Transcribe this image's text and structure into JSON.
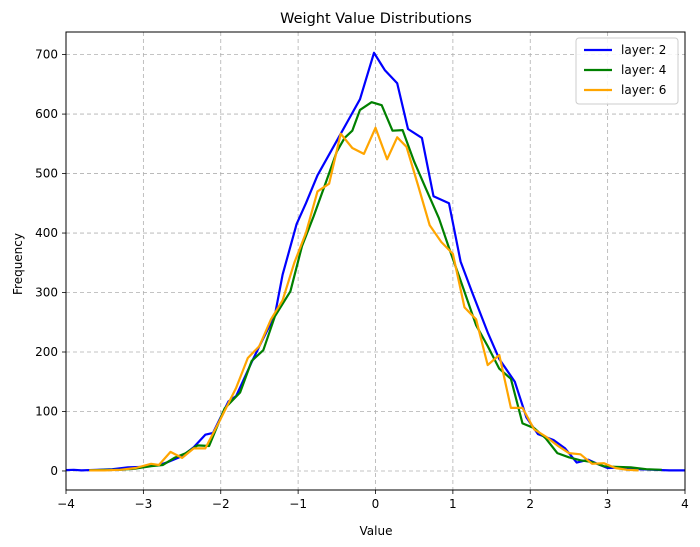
{
  "chart_data": {
    "type": "line",
    "title": "Weight Value Distributions",
    "xlabel": "Value",
    "ylabel": "Frequency",
    "xlim": [
      -4,
      4
    ],
    "ylim": [
      -32,
      738
    ],
    "xticks": [
      -4,
      -3,
      -2,
      -1,
      0,
      1,
      2,
      3,
      4
    ],
    "xtick_labels": [
      "−4",
      "−3",
      "−2",
      "−1",
      "0",
      "1",
      "2",
      "3",
      "4"
    ],
    "yticks": [
      0,
      100,
      200,
      300,
      400,
      500,
      600,
      700
    ],
    "ytick_labels": [
      "0",
      "100",
      "200",
      "300",
      "400",
      "500",
      "600",
      "700"
    ],
    "grid": true,
    "legend_position": "top-right",
    "series": [
      {
        "name": "layer: 2",
        "color": "#0000ff",
        "points": [
          [
            -4.1,
            1
          ],
          [
            -3.9,
            2
          ],
          [
            -3.8,
            1
          ],
          [
            -3.6,
            2
          ],
          [
            -3.4,
            3
          ],
          [
            -3.2,
            6
          ],
          [
            -3.0,
            7
          ],
          [
            -2.8,
            10
          ],
          [
            -2.7,
            14
          ],
          [
            -2.5,
            25
          ],
          [
            -2.35,
            40
          ],
          [
            -2.2,
            61
          ],
          [
            -2.1,
            64
          ],
          [
            -1.9,
            117
          ],
          [
            -1.8,
            126
          ],
          [
            -1.6,
            183
          ],
          [
            -1.5,
            210
          ],
          [
            -1.3,
            262
          ],
          [
            -1.2,
            330
          ],
          [
            -1.02,
            415
          ],
          [
            -0.9,
            450
          ],
          [
            -0.75,
            497
          ],
          [
            -0.5,
            555
          ],
          [
            -0.35,
            590
          ],
          [
            -0.2,
            625
          ],
          [
            -0.02,
            703
          ],
          [
            0.12,
            674
          ],
          [
            0.28,
            652
          ],
          [
            0.42,
            575
          ],
          [
            0.6,
            560
          ],
          [
            0.75,
            462
          ],
          [
            0.95,
            450
          ],
          [
            1.1,
            352
          ],
          [
            1.25,
            300
          ],
          [
            1.45,
            233
          ],
          [
            1.6,
            188
          ],
          [
            1.8,
            150
          ],
          [
            1.95,
            90
          ],
          [
            2.1,
            62
          ],
          [
            2.3,
            52
          ],
          [
            2.45,
            38
          ],
          [
            2.6,
            14
          ],
          [
            2.75,
            19
          ],
          [
            2.9,
            10
          ],
          [
            3.0,
            5
          ],
          [
            3.2,
            6
          ],
          [
            3.4,
            3
          ],
          [
            3.6,
            2
          ],
          [
            3.8,
            1
          ],
          [
            4.05,
            1
          ]
        ]
      },
      {
        "name": "layer: 4",
        "color": "#008000",
        "points": [
          [
            -3.7,
            1
          ],
          [
            -3.5,
            2
          ],
          [
            -3.3,
            2
          ],
          [
            -3.1,
            4
          ],
          [
            -2.9,
            8
          ],
          [
            -2.75,
            10
          ],
          [
            -2.6,
            22
          ],
          [
            -2.45,
            30
          ],
          [
            -2.3,
            43
          ],
          [
            -2.15,
            42
          ],
          [
            -1.95,
            105
          ],
          [
            -1.75,
            132
          ],
          [
            -1.6,
            185
          ],
          [
            -1.45,
            203
          ],
          [
            -1.3,
            260
          ],
          [
            -1.1,
            302
          ],
          [
            -0.95,
            378
          ],
          [
            -0.8,
            428
          ],
          [
            -0.65,
            482
          ],
          [
            -0.5,
            537
          ],
          [
            -0.4,
            560
          ],
          [
            -0.3,
            572
          ],
          [
            -0.2,
            607
          ],
          [
            -0.05,
            620
          ],
          [
            0.08,
            615
          ],
          [
            0.22,
            572
          ],
          [
            0.35,
            573
          ],
          [
            0.5,
            520
          ],
          [
            0.65,
            475
          ],
          [
            0.82,
            425
          ],
          [
            0.95,
            375
          ],
          [
            1.1,
            320
          ],
          [
            1.3,
            245
          ],
          [
            1.45,
            210
          ],
          [
            1.6,
            172
          ],
          [
            1.75,
            155
          ],
          [
            1.9,
            80
          ],
          [
            2.05,
            72
          ],
          [
            2.2,
            55
          ],
          [
            2.35,
            30
          ],
          [
            2.5,
            23
          ],
          [
            2.65,
            18
          ],
          [
            2.8,
            15
          ],
          [
            2.95,
            8
          ],
          [
            3.1,
            7
          ],
          [
            3.3,
            6
          ],
          [
            3.5,
            3
          ],
          [
            3.7,
            2
          ]
        ]
      },
      {
        "name": "layer: 6",
        "color": "#ffa500",
        "points": [
          [
            -3.7,
            1
          ],
          [
            -3.5,
            1
          ],
          [
            -3.3,
            2
          ],
          [
            -3.1,
            5
          ],
          [
            -2.9,
            12
          ],
          [
            -2.8,
            10
          ],
          [
            -2.65,
            32
          ],
          [
            -2.5,
            22
          ],
          [
            -2.35,
            38
          ],
          [
            -2.2,
            38
          ],
          [
            -2.0,
            88
          ],
          [
            -1.8,
            140
          ],
          [
            -1.65,
            190
          ],
          [
            -1.5,
            210
          ],
          [
            -1.35,
            255
          ],
          [
            -1.2,
            287
          ],
          [
            -1.05,
            350
          ],
          [
            -0.9,
            400
          ],
          [
            -0.75,
            470
          ],
          [
            -0.6,
            483
          ],
          [
            -0.45,
            567
          ],
          [
            -0.3,
            543
          ],
          [
            -0.15,
            533
          ],
          [
            0.0,
            577
          ],
          [
            0.15,
            524
          ],
          [
            0.28,
            561
          ],
          [
            0.4,
            545
          ],
          [
            0.55,
            480
          ],
          [
            0.7,
            413
          ],
          [
            0.85,
            385
          ],
          [
            1.0,
            365
          ],
          [
            1.15,
            275
          ],
          [
            1.3,
            255
          ],
          [
            1.45,
            178
          ],
          [
            1.6,
            195
          ],
          [
            1.75,
            106
          ],
          [
            1.9,
            106
          ],
          [
            2.05,
            70
          ],
          [
            2.2,
            58
          ],
          [
            2.35,
            43
          ],
          [
            2.5,
            30
          ],
          [
            2.65,
            28
          ],
          [
            2.8,
            12
          ],
          [
            2.95,
            13
          ],
          [
            3.1,
            5
          ],
          [
            3.25,
            2
          ],
          [
            3.4,
            1
          ]
        ]
      }
    ]
  }
}
